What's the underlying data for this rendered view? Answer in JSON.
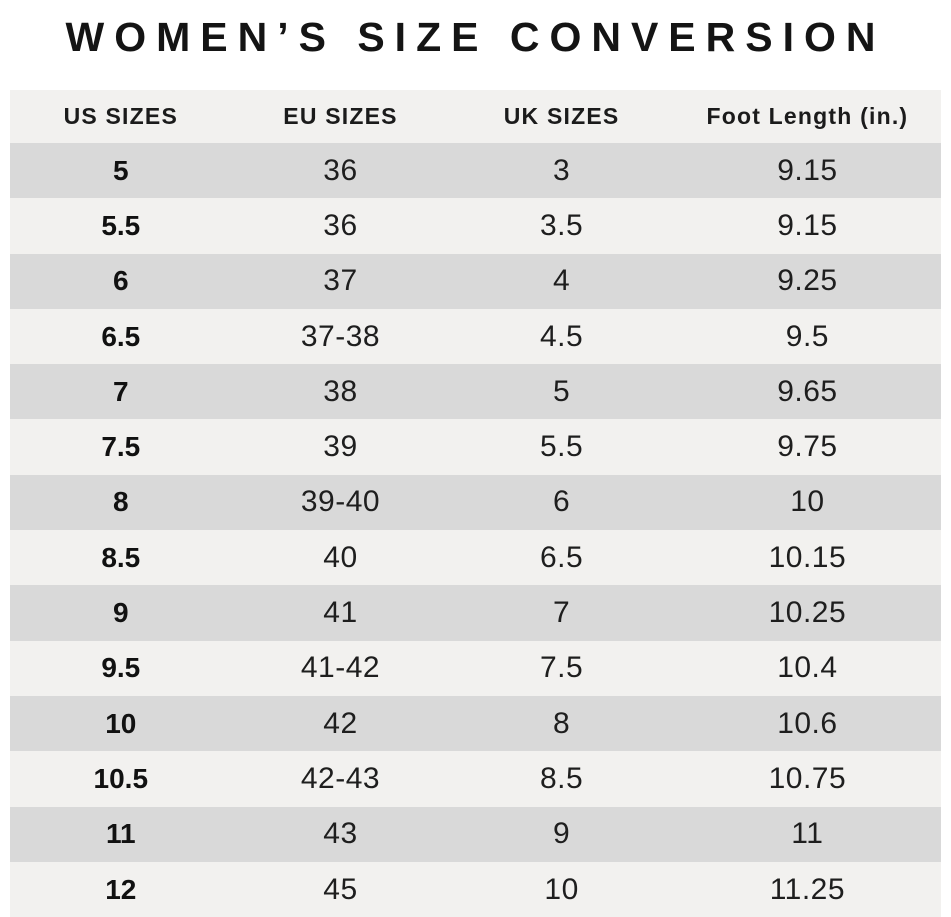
{
  "title": "WOMEN’S SIZE CONVERSION",
  "colors": {
    "background": "#ffffff",
    "header_row_bg": "#f2f1ef",
    "row_gray": "#d9d9d9",
    "row_light": "#f2f1ef",
    "text": "#1b1b1b"
  },
  "chart_data": {
    "type": "table",
    "title": "WOMEN’S SIZE CONVERSION",
    "columns": [
      "US SIZES",
      "EU SIZES",
      "UK SIZES",
      "Foot Length (in.)"
    ],
    "rows": [
      [
        "5",
        "36",
        "3",
        "9.15"
      ],
      [
        "5.5",
        "36",
        "3.5",
        "9.15"
      ],
      [
        "6",
        "37",
        "4",
        "9.25"
      ],
      [
        "6.5",
        "37-38",
        "4.5",
        "9.5"
      ],
      [
        "7",
        "38",
        "5",
        "9.65"
      ],
      [
        "7.5",
        "39",
        "5.5",
        "9.75"
      ],
      [
        "8",
        "39-40",
        "6",
        "10"
      ],
      [
        "8.5",
        "40",
        "6.5",
        "10.15"
      ],
      [
        "9",
        "41",
        "7",
        "10.25"
      ],
      [
        "9.5",
        "41-42",
        "7.5",
        "10.4"
      ],
      [
        "10",
        "42",
        "8",
        "10.6"
      ],
      [
        "10.5",
        "42-43",
        "8.5",
        "10.75"
      ],
      [
        "11",
        "43",
        "9",
        "11"
      ],
      [
        "12",
        "45",
        "10",
        "11.25"
      ]
    ],
    "layout": {
      "alternating_rows": true,
      "first_data_row_shade": "gray",
      "grid": false,
      "legend": "none"
    }
  }
}
